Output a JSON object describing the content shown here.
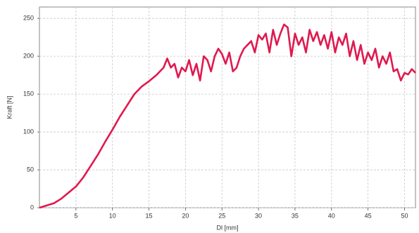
{
  "chart_data": {
    "type": "line",
    "y_label": "Kraft [N]",
    "x_label": "Dl [mm]",
    "x": [
      0,
      1,
      2,
      3,
      4,
      5,
      6,
      7,
      8,
      9,
      10,
      11,
      12,
      13,
      14,
      15,
      16,
      17,
      17.5,
      18,
      18.5,
      19,
      19.5,
      20,
      20.5,
      21,
      21.5,
      22,
      22.5,
      23,
      23.5,
      24,
      24.5,
      25,
      25.5,
      26,
      26.5,
      27,
      27.5,
      28,
      28.5,
      29,
      29.5,
      30,
      30.5,
      31,
      31.5,
      32,
      32.5,
      33,
      33.5,
      34,
      34.5,
      35,
      35.5,
      36,
      36.5,
      37,
      37.5,
      38,
      38.5,
      39,
      39.5,
      40,
      40.5,
      41,
      41.5,
      42,
      42.5,
      43,
      43.5,
      44,
      44.5,
      45,
      45.5,
      46,
      46.5,
      47,
      47.5,
      48,
      48.5,
      49,
      49.5,
      50,
      50.5,
      51,
      51.5
    ],
    "series": [
      {
        "name": "Kraft",
        "color": "#e0194f",
        "values": [
          0,
          3,
          6,
          12,
          20,
          28,
          40,
          55,
          70,
          87,
          103,
          120,
          135,
          150,
          160,
          167,
          175,
          185,
          197,
          185,
          190,
          172,
          185,
          180,
          195,
          175,
          190,
          168,
          200,
          195,
          180,
          200,
          210,
          203,
          190,
          205,
          180,
          185,
          200,
          210,
          215,
          220,
          205,
          228,
          222,
          230,
          205,
          235,
          215,
          230,
          242,
          238,
          200,
          230,
          215,
          225,
          205,
          235,
          220,
          232,
          215,
          228,
          210,
          232,
          205,
          225,
          215,
          230,
          200,
          220,
          195,
          215,
          190,
          205,
          195,
          210,
          185,
          200,
          190,
          205,
          180,
          183,
          168,
          178,
          176,
          183,
          178
        ]
      }
    ],
    "xlim": [
      0,
      51.5
    ],
    "ylim": [
      0,
      265
    ],
    "xticks": [
      5,
      10,
      15,
      20,
      25,
      30,
      35,
      40,
      45,
      50
    ],
    "yticks": [
      0,
      50,
      100,
      150,
      200,
      250
    ],
    "grid": true
  }
}
